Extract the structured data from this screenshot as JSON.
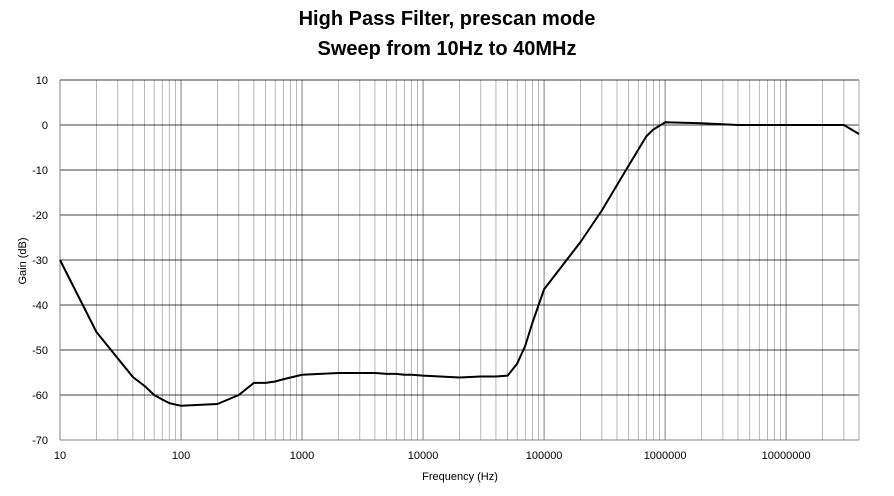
{
  "chart_data": {
    "type": "line",
    "title": "High Pass Filter, prescan mode",
    "subtitle": "Sweep from 10Hz to 40MHz",
    "xlabel": "Frequency (Hz)",
    "ylabel": "Gain (dB)",
    "x_scale": "log",
    "xlim": [
      10,
      40000000
    ],
    "ylim": [
      -70,
      10
    ],
    "grid": true,
    "x_tick_labels": [
      "10",
      "100",
      "1000",
      "10000",
      "100000",
      "1000000",
      "10000000"
    ],
    "x_tick_values": [
      10,
      100,
      1000,
      10000,
      100000,
      1000000,
      10000000
    ],
    "y_ticks": [
      10,
      0,
      -10,
      -20,
      -30,
      -40,
      -50,
      -60,
      -70
    ],
    "series": [
      {
        "color": "#000000",
        "points": [
          [
            10,
            -30
          ],
          [
            20,
            -46
          ],
          [
            40,
            -56
          ],
          [
            50,
            -58
          ],
          [
            60,
            -60
          ],
          [
            70,
            -61
          ],
          [
            80,
            -61.8
          ],
          [
            100,
            -62.4
          ],
          [
            200,
            -62
          ],
          [
            300,
            -60
          ],
          [
            400,
            -57.3
          ],
          [
            500,
            -57.3
          ],
          [
            600,
            -57
          ],
          [
            700,
            -56.5
          ],
          [
            1000,
            -55.5
          ],
          [
            2000,
            -55.1
          ],
          [
            4000,
            -55.1
          ],
          [
            5000,
            -55.3
          ],
          [
            6000,
            -55.3
          ],
          [
            7000,
            -55.5
          ],
          [
            8000,
            -55.5
          ],
          [
            10000,
            -55.7
          ],
          [
            20000,
            -56.1
          ],
          [
            30000,
            -55.9
          ],
          [
            40000,
            -55.9
          ],
          [
            50000,
            -55.7
          ],
          [
            60000,
            -53
          ],
          [
            70000,
            -49
          ],
          [
            80000,
            -44
          ],
          [
            100000,
            -36.5
          ],
          [
            200000,
            -26
          ],
          [
            300000,
            -19
          ],
          [
            500000,
            -9
          ],
          [
            700000,
            -2.5
          ],
          [
            800000,
            -1
          ],
          [
            1000000,
            0.6
          ],
          [
            2000000,
            0.4
          ],
          [
            4000000,
            0
          ],
          [
            10000000,
            0
          ],
          [
            30000000,
            0
          ],
          [
            40000000,
            -2
          ]
        ]
      }
    ]
  }
}
